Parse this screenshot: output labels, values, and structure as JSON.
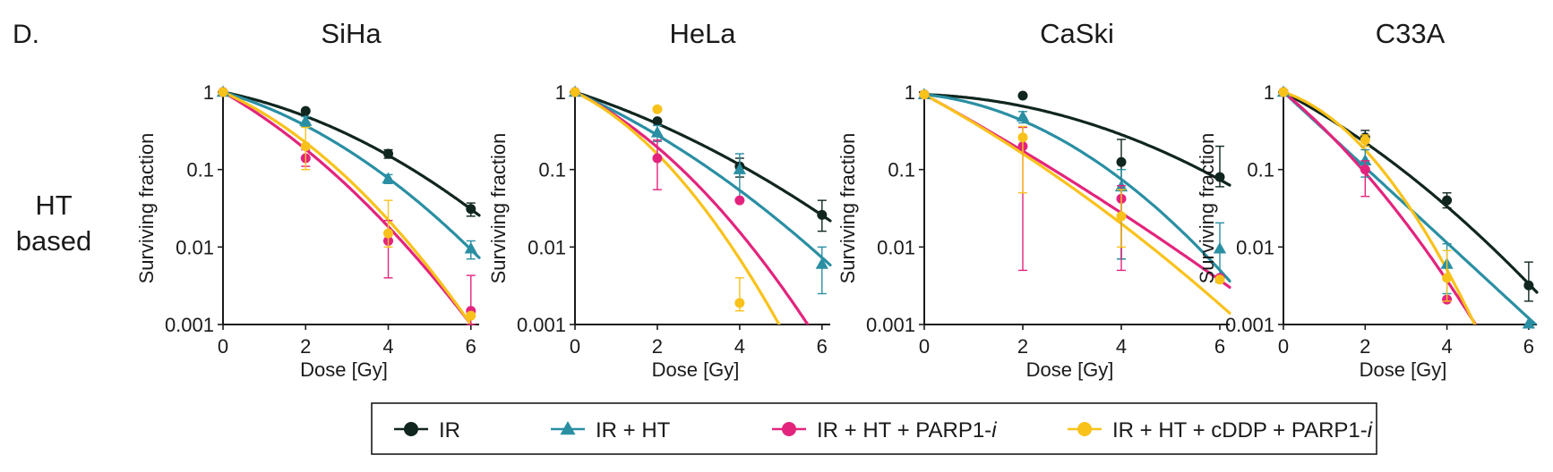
{
  "figure": {
    "panel_label": "D.",
    "row_label_lines": [
      "HT",
      "based"
    ]
  },
  "colors": {
    "IR": "#10261f",
    "IR + HT": "#2a8fa3",
    "IR + HT + PARP1-i": "#e3247d",
    "IR + HT + cDDP + PARP1-i": "#f9c21b"
  },
  "legend": {
    "entries": [
      {
        "key": "IR",
        "parts": [
          {
            "t": "IR",
            "italic": false
          }
        ],
        "marker": "circle"
      },
      {
        "key": "IR + HT",
        "parts": [
          {
            "t": "IR + HT",
            "italic": false
          }
        ],
        "marker": "triangle"
      },
      {
        "key": "IR + HT + PARP1-i",
        "parts": [
          {
            "t": "IR + HT + PARP1-",
            "italic": false
          },
          {
            "t": "i",
            "italic": true
          }
        ],
        "marker": "circle"
      },
      {
        "key": "IR + HT + cDDP + PARP1-i",
        "parts": [
          {
            "t": "IR + HT + cDDP + PARP1-",
            "italic": false
          },
          {
            "t": "i",
            "italic": true
          }
        ],
        "marker": "circle"
      }
    ]
  },
  "chart_data": [
    {
      "type": "scatter",
      "title": "SiHa",
      "xlabel": "Dose [Gy]",
      "ylabel": "Surviving fraction",
      "yscale": "log",
      "ylim": [
        0.001,
        1
      ],
      "xlim": [
        0,
        6.2
      ],
      "xticks": [
        "0",
        "2",
        "4",
        "6"
      ],
      "yticks": [
        "1",
        "0.1",
        "0.01",
        "0.001"
      ],
      "series": [
        {
          "name": "IR",
          "marker": "circle",
          "points": [
            [
              0,
              1,
              0,
              0
            ],
            [
              2,
              0.57,
              0,
              0
            ],
            [
              4,
              0.16,
              0.02,
              0.02
            ],
            [
              6,
              0.031,
              0.006,
              0.006
            ]
          ],
          "fit": {
            "alpha": 0.25,
            "beta": 0.055
          }
        },
        {
          "name": "IR + HT",
          "marker": "triangle",
          "points": [
            [
              0,
              1,
              0,
              0
            ],
            [
              2,
              0.42,
              0.06,
              0.06
            ],
            [
              4,
              0.076,
              0.01,
              0.01
            ],
            [
              6,
              0.0095,
              0.0025,
              0.0025
            ]
          ],
          "fit": {
            "alpha": 0.36,
            "beta": 0.07
          }
        },
        {
          "name": "IR + HT + PARP1-i",
          "marker": "circle",
          "points": [
            [
              0,
              1,
              0,
              0
            ],
            [
              2,
              0.14,
              0.04,
              0.03
            ],
            [
              4,
              0.012,
              0.01,
              0.008
            ],
            [
              6,
              0.0015,
              0.0028,
              0.0005
            ]
          ],
          "fit": {
            "alpha": 0.7,
            "beta": 0.075
          }
        },
        {
          "name": "IR + HT + cDDP + PARP1-i",
          "marker": "circle",
          "points": [
            [
              0,
              1,
              0,
              0
            ],
            [
              2,
              0.2,
              0.15,
              0.1
            ],
            [
              4,
              0.015,
              0.025,
              0.005
            ],
            [
              6,
              0.0013,
              0,
              0
            ]
          ],
          "fit": {
            "alpha": 0.55,
            "beta": 0.1
          }
        }
      ]
    },
    {
      "type": "scatter",
      "title": "HeLa",
      "xlabel": "Dose [Gy]",
      "ylabel": "Surviving fraction",
      "yscale": "log",
      "ylim": [
        0.001,
        1
      ],
      "xlim": [
        0,
        6.2
      ],
      "xticks": [
        "0",
        "2",
        "4",
        "6"
      ],
      "yticks": [
        "1",
        "0.1",
        "0.01",
        "0.001"
      ],
      "series": [
        {
          "name": "IR",
          "marker": "circle",
          "points": [
            [
              0,
              1,
              0,
              0
            ],
            [
              2,
              0.42,
              0,
              0
            ],
            [
              4,
              0.11,
              0.03,
              0.03
            ],
            [
              6,
              0.026,
              0.014,
              0.01
            ]
          ],
          "fit": {
            "alpha": 0.4,
            "beta": 0.035
          }
        },
        {
          "name": "IR + HT",
          "marker": "triangle",
          "points": [
            [
              0,
              1,
              0,
              0
            ],
            [
              2,
              0.3,
              0.07,
              0.07
            ],
            [
              4,
              0.1,
              0.06,
              0.06
            ],
            [
              6,
              0.006,
              0.004,
              0.0035
            ]
          ],
          "fit": {
            "alpha": 0.55,
            "beta": 0.045
          }
        },
        {
          "name": "IR + HT + PARP1-i",
          "marker": "circle",
          "points": [
            [
              0,
              1,
              0,
              0
            ],
            [
              2,
              0.14,
              0.1,
              0.085
            ],
            [
              4,
              0.04,
              0,
              0
            ],
            [
              6,
              null,
              0,
              0
            ]
          ],
          "fit": {
            "alpha": 0.6,
            "beta": 0.11
          }
        },
        {
          "name": "IR + HT + cDDP + PARP1-i",
          "marker": "circle",
          "points": [
            [
              0,
              1,
              0,
              0
            ],
            [
              2,
              0.6,
              0,
              0
            ],
            [
              4,
              0.0019,
              0.0021,
              0.0004
            ],
            [
              6,
              null,
              0,
              0
            ]
          ],
          "fit": {
            "alpha": 0.6,
            "beta": 0.16
          }
        }
      ]
    },
    {
      "type": "scatter",
      "title": "CaSki",
      "xlabel": "Dose [Gy]",
      "ylabel": "Surviving fraction",
      "yscale": "log",
      "ylim": [
        0.001,
        1
      ],
      "xlim": [
        0,
        6.2
      ],
      "xticks": [
        "0",
        "2",
        "4",
        "6"
      ],
      "yticks": [
        "1",
        "0.1",
        "0.01",
        "0.001"
      ],
      "series": [
        {
          "name": "IR",
          "marker": "circle",
          "points": [
            [
              0,
              0.93,
              0,
              0
            ],
            [
              2,
              0.9,
              0,
              0
            ],
            [
              4,
              0.125,
              0.12,
              0.118
            ],
            [
              6,
              0.08,
              0.12,
              0.02
            ]
          ],
          "fit": {
            "alpha": 0.05,
            "beta": 0.062
          }
        },
        {
          "name": "IR + HT",
          "marker": "triangle",
          "points": [
            [
              0,
              0.93,
              0,
              0
            ],
            [
              2,
              0.48,
              0.08,
              0.08
            ],
            [
              4,
              0.06,
              0.04,
              0.053
            ],
            [
              6,
              0.0095,
              0.011,
              0.006
            ]
          ],
          "fit": {
            "alpha": 0.15,
            "beta": 0.12
          }
        },
        {
          "name": "IR + HT + PARP1-i",
          "marker": "circle",
          "points": [
            [
              0,
              0.93,
              0,
              0
            ],
            [
              2,
              0.2,
              0.15,
              0.195
            ],
            [
              4,
              0.042,
              0.02,
              0.037
            ],
            [
              6,
              0.004,
              0,
              0
            ]
          ],
          "fit": {
            "alpha": 0.8,
            "beta": 0.02
          }
        },
        {
          "name": "IR + HT + cDDP + PARP1-i",
          "marker": "circle",
          "points": [
            [
              0,
              0.93,
              0,
              0
            ],
            [
              2,
              0.26,
              0.1,
              0.21
            ],
            [
              4,
              0.025,
              0.03,
              0.015
            ],
            [
              6,
              0.0038,
              0,
              0
            ]
          ],
          "fit": {
            "alpha": 0.8,
            "beta": 0.04
          }
        }
      ]
    },
    {
      "type": "scatter",
      "title": "C33A",
      "xlabel": "Dose [Gy]",
      "ylabel": "Surviving fraction",
      "yscale": "log",
      "ylim": [
        0.001,
        1
      ],
      "xlim": [
        0,
        6.2
      ],
      "xticks": [
        "0",
        "2",
        "4",
        "6"
      ],
      "yticks": [
        "1",
        "0.1",
        "0.01",
        "0.001"
      ],
      "series": [
        {
          "name": "IR",
          "marker": "circle",
          "points": [
            [
              0,
              1,
              0,
              0
            ],
            [
              2,
              0.26,
              0.06,
              0.06
            ],
            [
              4,
              0.04,
              0.01,
              0.008
            ],
            [
              6,
              0.0032,
              0.0032,
              0.0012
            ]
          ],
          "fit": {
            "alpha": 0.65,
            "beta": 0.05
          }
        },
        {
          "name": "IR + HT",
          "marker": "triangle",
          "points": [
            [
              0,
              1,
              0,
              0
            ],
            [
              2,
              0.13,
              0.05,
              0.05
            ],
            [
              4,
              0.006,
              0.005,
              0.0035
            ],
            [
              6,
              0.00102,
              0,
              0
            ]
          ],
          "fit": {
            "alpha": 1.12,
            "beta": 0
          }
        },
        {
          "name": "IR + HT + PARP1-i",
          "marker": "circle",
          "points": [
            [
              0,
              1,
              0,
              0
            ],
            [
              2,
              0.1,
              0.03,
              0.055
            ],
            [
              4,
              0.0021,
              0,
              0
            ],
            [
              6,
              null,
              0,
              0
            ]
          ],
          "fit": {
            "alpha": 1.0,
            "beta": 0.1
          }
        },
        {
          "name": "IR + HT + cDDP + PARP1-i",
          "marker": "circle",
          "points": [
            [
              0,
              1,
              0,
              0
            ],
            [
              2,
              0.24,
              0.04,
              0.04
            ],
            [
              4,
              0.004,
              0.005,
              0.002
            ],
            [
              6,
              null,
              0,
              0
            ]
          ],
          "fit": {
            "alpha": 0.4,
            "beta": 0.23
          }
        }
      ]
    }
  ]
}
